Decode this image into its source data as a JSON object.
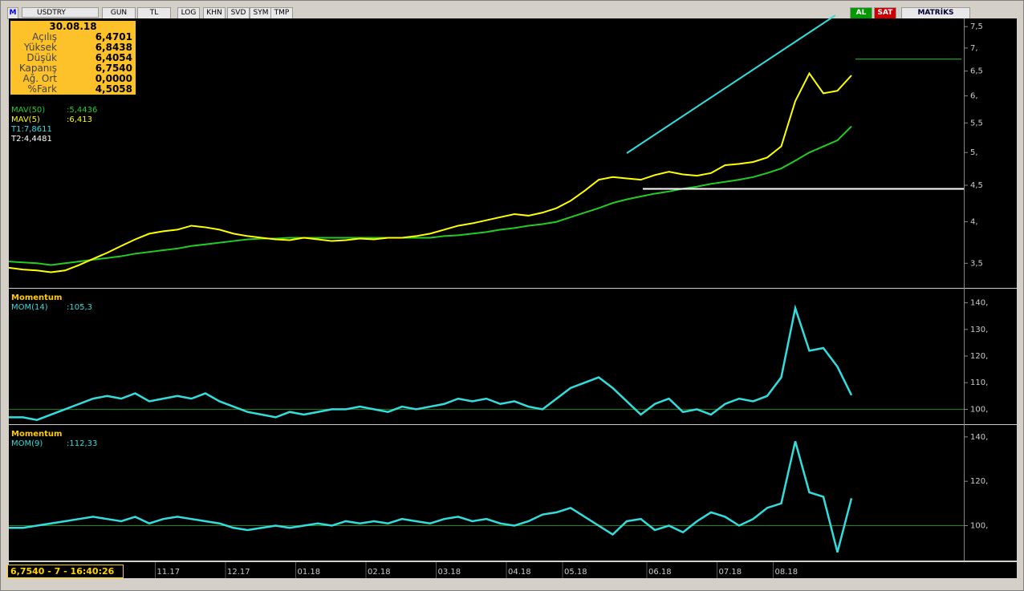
{
  "toolbar": {
    "logo": "M",
    "symbol": "USDTRY",
    "buttons": [
      "GUN",
      "TL",
      "LOG",
      "KHN",
      "SVD",
      "SYM",
      "TMP"
    ],
    "right_buttons": [
      "AL",
      "SAT"
    ],
    "brand": "MATRİKS"
  },
  "info": {
    "date": "30.08.18",
    "rows": [
      [
        "Açılış",
        "6,4701"
      ],
      [
        "Yüksek",
        "6,8438"
      ],
      [
        "Düşük",
        "6,4054"
      ],
      [
        "Kapanış",
        "6,7540"
      ],
      [
        "Ağ. Ort",
        "0,0000"
      ],
      [
        "%Fark",
        "4,5058"
      ]
    ]
  },
  "status": "6,7540 - 7 - 16:40:26",
  "chart_data": [
    {
      "type": "line",
      "log_scale": true,
      "categories": [
        null,
        null,
        null,
        null,
        null,
        null,
        null,
        null,
        null,
        null,
        null,
        "11.17",
        null,
        null,
        null,
        null,
        "12.17",
        null,
        null,
        null,
        null,
        "01.18",
        null,
        null,
        null,
        null,
        "02.18",
        null,
        null,
        null,
        null,
        "03.18",
        null,
        null,
        null,
        null,
        "04.18",
        null,
        null,
        null,
        "05.18",
        null,
        null,
        null,
        null,
        null,
        "06.18",
        null,
        null,
        null,
        null,
        "07.18",
        null,
        null,
        null,
        "08.18",
        null,
        null,
        null,
        null,
        null
      ],
      "series": [
        {
          "name": "MAV(50)",
          "last_label": ":5,4436",
          "color": "#22cc22",
          "values": [
            3.52,
            3.51,
            3.5,
            3.48,
            3.5,
            3.52,
            3.54,
            3.56,
            3.58,
            3.61,
            3.63,
            3.65,
            3.67,
            3.7,
            3.72,
            3.74,
            3.76,
            3.78,
            3.79,
            3.79,
            3.8,
            3.8,
            3.8,
            3.8,
            3.8,
            3.8,
            3.8,
            3.8,
            3.8,
            3.8,
            3.8,
            3.82,
            3.83,
            3.85,
            3.87,
            3.9,
            3.92,
            3.95,
            3.97,
            4.0,
            4.06,
            4.12,
            4.18,
            4.25,
            4.3,
            4.34,
            4.38,
            4.41,
            4.45,
            4.48,
            4.52,
            4.55,
            4.58,
            4.62,
            4.68,
            4.75,
            4.87,
            5.0,
            5.1,
            5.2,
            5.44
          ]
        },
        {
          "name": "MAV(5)",
          "last_label": ":6,413",
          "color": "#ffff00",
          "values": [
            3.45,
            3.43,
            3.42,
            3.4,
            3.42,
            3.48,
            3.55,
            3.62,
            3.7,
            3.78,
            3.85,
            3.88,
            3.9,
            3.95,
            3.93,
            3.9,
            3.85,
            3.82,
            3.8,
            3.78,
            3.77,
            3.8,
            3.78,
            3.76,
            3.77,
            3.79,
            3.78,
            3.8,
            3.8,
            3.82,
            3.85,
            3.9,
            3.95,
            3.98,
            4.02,
            4.06,
            4.1,
            4.08,
            4.12,
            4.18,
            4.28,
            4.42,
            4.58,
            4.62,
            4.6,
            4.58,
            4.65,
            4.7,
            4.66,
            4.64,
            4.68,
            4.8,
            4.82,
            4.85,
            4.92,
            5.1,
            5.9,
            6.45,
            6.05,
            6.1,
            6.41
          ]
        }
      ],
      "trendlines": [
        {
          "value": 7.8611,
          "label": "T1:7,8611"
        },
        {
          "value": 4.4481,
          "label": "T2:4,4481"
        }
      ],
      "last_close_line": 6.754,
      "ylim": [
        3.25,
        7.7
      ],
      "yticks": [
        {
          "value": 3.5,
          "label": "3,5"
        },
        {
          "value": 4,
          "label": "4,"
        },
        {
          "value": 4.5,
          "label": "4,5"
        },
        {
          "value": 5,
          "label": "5,"
        },
        {
          "value": 5.5,
          "label": "5,5"
        },
        {
          "value": 6,
          "label": "6,"
        },
        {
          "value": 6.5,
          "label": "6,5"
        },
        {
          "value": 7,
          "label": "7,"
        },
        {
          "value": 7.5,
          "label": "7,5"
        }
      ]
    },
    {
      "type": "line",
      "title": "Momentum",
      "reference": 100,
      "series": [
        {
          "name": "MOM(14)",
          "last_label": ":105,3",
          "color": "#33dddd",
          "values": [
            97,
            97,
            96,
            98,
            100,
            102,
            104,
            105,
            104,
            106,
            103,
            104,
            105,
            104,
            106,
            103,
            101,
            99,
            98,
            97,
            99,
            98,
            99,
            100,
            100,
            101,
            100,
            99,
            101,
            100,
            101,
            102,
            104,
            103,
            104,
            102,
            103,
            101,
            100,
            104,
            108,
            110,
            112,
            108,
            103,
            98,
            102,
            104,
            99,
            100,
            98,
            102,
            104,
            103,
            105,
            112,
            138,
            122,
            123,
            116,
            105.3
          ]
        }
      ],
      "ylim": [
        95,
        145
      ],
      "yticks": [
        {
          "value": 100,
          "label": "100,"
        },
        {
          "value": 110,
          "label": "110,"
        },
        {
          "value": 120,
          "label": "120,"
        },
        {
          "value": 130,
          "label": "130,"
        },
        {
          "value": 140,
          "label": "140,"
        }
      ]
    },
    {
      "type": "line",
      "title": "Momentum",
      "reference": 100,
      "series": [
        {
          "name": "MOM(9)",
          "last_label": ":112,33",
          "color": "#33dddd",
          "values": [
            99,
            99,
            100,
            101,
            102,
            103,
            104,
            103,
            102,
            104,
            101,
            103,
            104,
            103,
            102,
            101,
            99,
            98,
            99,
            100,
            99,
            100,
            101,
            100,
            102,
            101,
            102,
            101,
            103,
            102,
            101,
            103,
            104,
            102,
            103,
            101,
            100,
            102,
            105,
            106,
            108,
            104,
            100,
            96,
            102,
            103,
            98,
            100,
            97,
            102,
            106,
            104,
            100,
            103,
            108,
            110,
            138,
            115,
            113,
            88,
            112.33
          ]
        }
      ],
      "ylim": [
        85,
        145
      ],
      "yticks": [
        {
          "value": 100,
          "label": "100,"
        },
        {
          "value": 120,
          "label": "120,"
        },
        {
          "value": 140,
          "label": "140,"
        }
      ]
    }
  ]
}
